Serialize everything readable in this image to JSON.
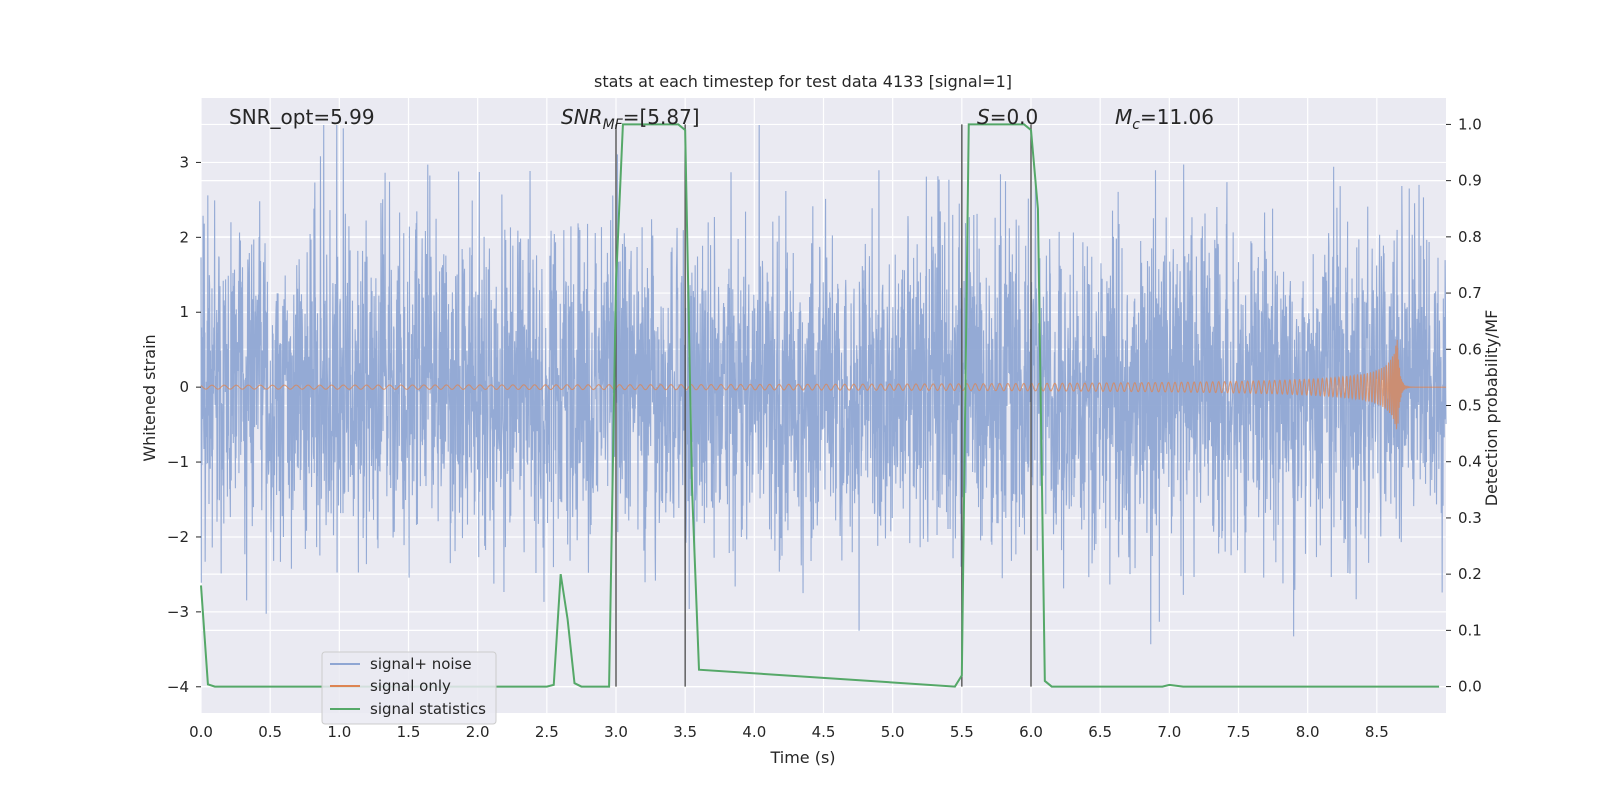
{
  "chart_data": {
    "type": "line",
    "title": "stats at each timestep for test data 4133 [signal=1]",
    "xlabel": "Time (s)",
    "ylabel_left": "Whitened strain",
    "ylabel_right": "Detection probability/MF",
    "xlim": [
      0,
      9.0
    ],
    "ylim_left": [
      -4.35,
      3.86
    ],
    "ylim_right": [
      -0.047,
      1.047
    ],
    "x_ticks": [
      "0.0",
      "0.5",
      "1.0",
      "1.5",
      "2.0",
      "2.5",
      "3.0",
      "3.5",
      "4.0",
      "4.5",
      "5.0",
      "5.5",
      "6.0",
      "6.5",
      "7.0",
      "7.5",
      "8.0",
      "8.5"
    ],
    "y_ticks_left": [
      "−4",
      "−3",
      "−2",
      "−1",
      "0",
      "1",
      "2",
      "3"
    ],
    "y_ticks_right": [
      "0.0",
      "0.1",
      "0.2",
      "0.3",
      "0.4",
      "0.5",
      "0.6",
      "0.7",
      "0.8",
      "0.9",
      "1.0"
    ],
    "grid": true,
    "legend_placement": "lower-left",
    "annotations": {
      "snr_opt": "SNR_opt=5.99",
      "snr_mf_base": "SNR",
      "snr_mf_sub": "MF",
      "snr_mf_value": "=[5.87]",
      "s_base": "S",
      "s_value": "=0.0",
      "mc_base": "M",
      "mc_sub": "c",
      "mc_value": "=11.06"
    },
    "series": [
      {
        "name": "signal+ noise",
        "color": "#8fa6d3",
        "axis": "left",
        "amplitude_typical": 1.8,
        "amplitude_max": 3.5
      },
      {
        "name": "signal only",
        "color": "#dd8452",
        "axis": "left",
        "merger_time": 8.65,
        "peak_amplitude": 1.1
      },
      {
        "name": "signal statistics",
        "color": "#55a868",
        "axis": "right",
        "x": [
          0.0,
          0.05,
          0.1,
          2.5,
          2.55,
          2.6,
          2.65,
          2.7,
          2.75,
          2.95,
          3.0,
          3.05,
          3.45,
          3.5,
          3.55,
          3.6,
          5.45,
          5.5,
          5.55,
          5.95,
          6.0,
          6.05,
          6.1,
          6.15,
          6.95,
          7.0,
          7.1,
          8.95
        ],
        "y": [
          0.18,
          0.004,
          0.0,
          0.0,
          0.003,
          0.2,
          0.12,
          0.006,
          0.0,
          0.0,
          0.72,
          1.0,
          1.0,
          0.99,
          0.35,
          0.03,
          0.0,
          0.02,
          1.0,
          1.0,
          0.99,
          0.85,
          0.01,
          0.0,
          0.0,
          0.003,
          0.0,
          0.0
        ]
      }
    ],
    "vertical_markers": [
      3.0,
      3.5,
      5.5,
      6.0
    ]
  }
}
